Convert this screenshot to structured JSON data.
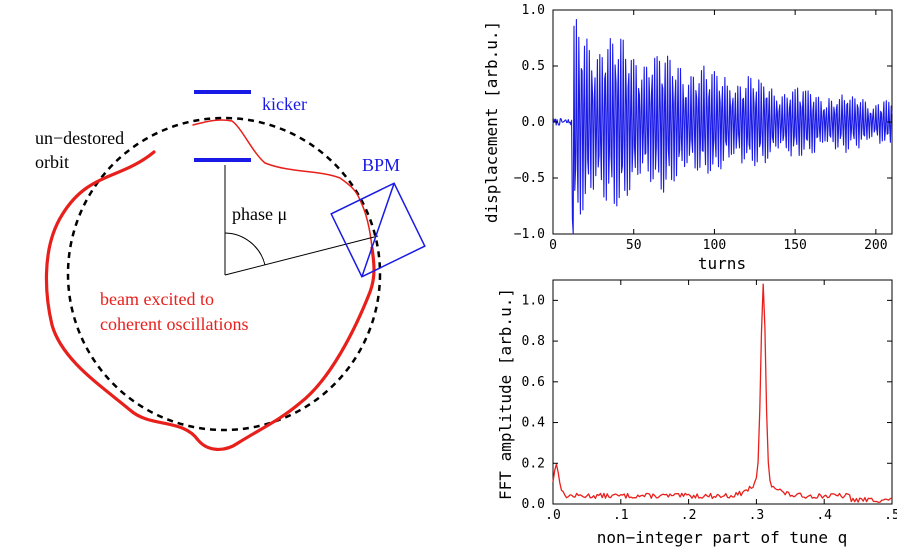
{
  "diagram": {
    "orbit_label_line1": "un−destored",
    "orbit_label_line2": "orbit",
    "kicker_label": "kicker",
    "bpm_label": "BPM",
    "phase_label": "phase μ",
    "beam_label_line1": "beam excited to",
    "beam_label_line2": "coherent oscillations",
    "colors": {
      "beam": "#e8201c",
      "hardware": "#1a1ae6",
      "orbit": "#000000"
    }
  },
  "chart_data": [
    {
      "type": "line",
      "xlabel": "turns",
      "ylabel": "displacement [arb.u.]",
      "xlim": [
        0,
        210
      ],
      "ylim": [
        -1.0,
        1.0
      ],
      "xticks": [
        0,
        50,
        100,
        150,
        200
      ],
      "yticks": [
        -1.0,
        -0.5,
        0.0,
        0.5,
        1.0
      ],
      "xtick_labels": [
        "0",
        "50",
        "100",
        "150",
        "200"
      ],
      "ytick_labels": [
        "−1.0",
        "−0.5",
        "0.0",
        "0.5",
        "1.0"
      ],
      "kick_turn": 12,
      "signal": {
        "tune": 0.31,
        "peak_amplitude": 0.95,
        "amplitude_at_210": 0.2,
        "noise": 0.03
      },
      "color": "#1a1ae6",
      "grid": false
    },
    {
      "type": "line",
      "xlabel": "non−integer part of tune q",
      "ylabel": "FFT amplitude [arb.u.]",
      "xlim": [
        0,
        0.5
      ],
      "ylim": [
        0,
        1.1
      ],
      "xticks": [
        0,
        0.1,
        0.2,
        0.3,
        0.4,
        0.5
      ],
      "yticks": [
        0.0,
        0.2,
        0.4,
        0.6,
        0.8,
        1.0
      ],
      "xtick_labels": [
        ".0",
        ".1",
        ".2",
        ".3",
        ".4",
        ".5"
      ],
      "ytick_labels": [
        "0.0",
        "0.2",
        "0.4",
        "0.6",
        "0.8",
        "1.0"
      ],
      "peak": {
        "q": 0.31,
        "amplitude": 1.0
      },
      "low_frequency_peak": {
        "q": 0.005,
        "amplitude": 0.19
      },
      "background_level": 0.04,
      "color": "#e8201c",
      "grid": false
    }
  ]
}
